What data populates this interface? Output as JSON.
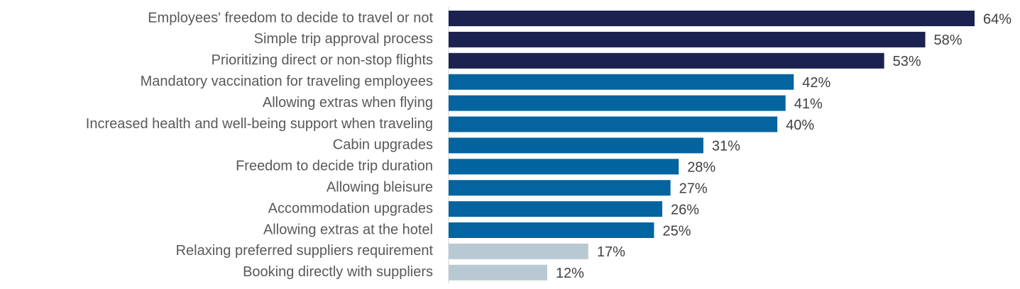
{
  "chart_data": {
    "type": "hbar",
    "categories": [
      "Employees' freedom to decide to travel or not",
      "Simple trip approval process",
      "Prioritizing direct or non-stop flights",
      "Mandatory vaccination for traveling employees",
      "Allowing extras when flying",
      "Increased health and well-being support when traveling",
      "Cabin upgrades",
      "Freedom to decide trip duration",
      "Allowing bleisure",
      "Accommodation upgrades",
      "Allowing extras at the hotel",
      "Relaxing preferred suppliers requirement",
      "Booking directly with suppliers"
    ],
    "values": [
      64,
      58,
      53,
      42,
      41,
      40,
      31,
      28,
      27,
      26,
      25,
      17,
      12
    ],
    "value_labels": [
      "64%",
      "58%",
      "53%",
      "42%",
      "41%",
      "40%",
      "31%",
      "28%",
      "27%",
      "26%",
      "25%",
      "17%",
      "12%"
    ],
    "colors": [
      "#1b2250",
      "#1b2250",
      "#1b2250",
      "#03649f",
      "#03649f",
      "#03649f",
      "#03649f",
      "#03649f",
      "#03649f",
      "#03649f",
      "#03649f",
      "#b9c9d4",
      "#b9c9d4"
    ]
  }
}
